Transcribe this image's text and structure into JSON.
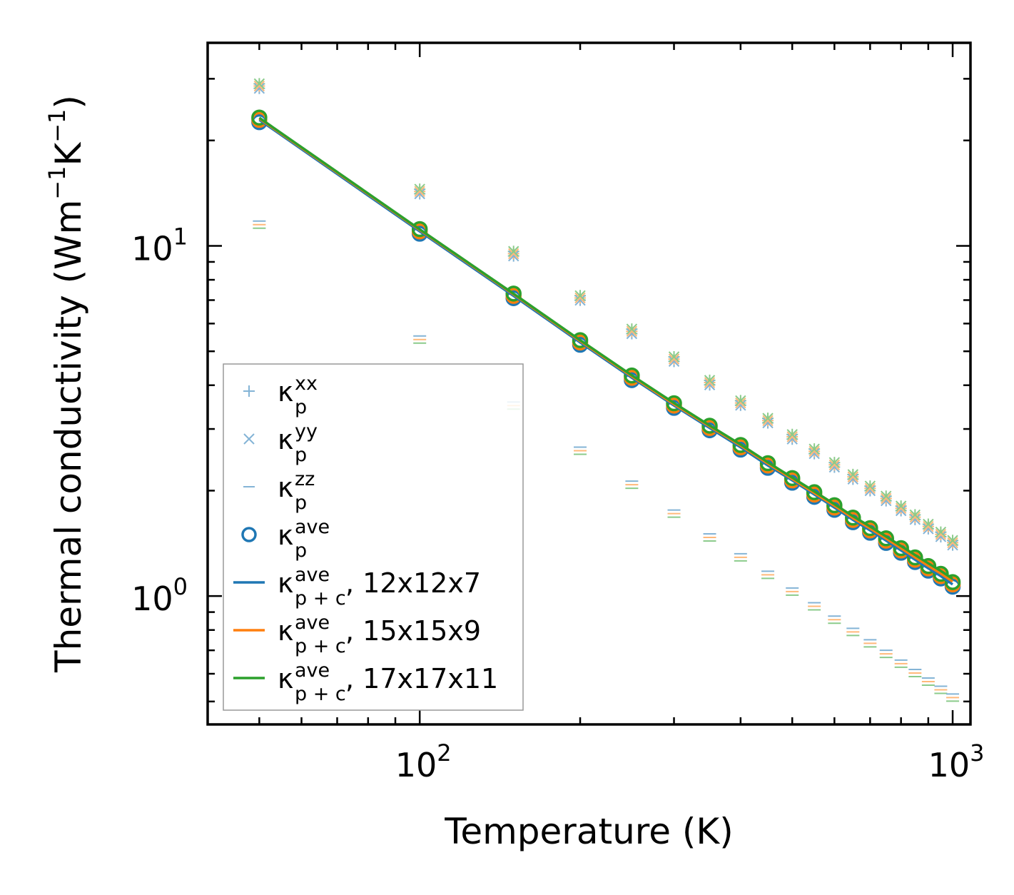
{
  "chart_data": {
    "type": "scatter",
    "x_scale": "log",
    "y_scale": "log",
    "xlabel": "Temperature (K)",
    "ylabel_base": "Thermal conductivity (Wm",
    "ylabel_mid": "K",
    "ylabel_close": ")",
    "ylabel_exp": "−1",
    "xlim": [
      40,
      1080
    ],
    "ylim": [
      0.43,
      38
    ],
    "x_ticks": [
      {
        "base": "10",
        "exp": "2",
        "value": 100
      },
      {
        "base": "10",
        "exp": "3",
        "value": 1000
      }
    ],
    "y_ticks": [
      {
        "base": "10",
        "exp": "0",
        "value": 1
      },
      {
        "base": "10",
        "exp": "1",
        "value": 10
      }
    ],
    "kappa": "κ",
    "temperatures": [
      50,
      100,
      150,
      200,
      250,
      300,
      350,
      400,
      450,
      500,
      550,
      600,
      650,
      700,
      750,
      800,
      850,
      900,
      950,
      1000
    ],
    "series": [
      {
        "name": "κp^xx",
        "marker": "plus",
        "color": "#1f77b4",
        "values": [
          28.6,
          14.3,
          9.5,
          7.1,
          5.7,
          4.75,
          4.07,
          3.56,
          3.17,
          2.85,
          2.59,
          2.37,
          2.19,
          2.03,
          1.9,
          1.78,
          1.68,
          1.58,
          1.5,
          1.42
        ]
      },
      {
        "name": "κp^yy",
        "marker": "x",
        "color": "#1f77b4",
        "values": [
          28.6,
          14.3,
          9.5,
          7.1,
          5.7,
          4.75,
          4.07,
          3.56,
          3.17,
          2.85,
          2.59,
          2.37,
          2.19,
          2.03,
          1.9,
          1.78,
          1.68,
          1.58,
          1.5,
          1.42
        ]
      },
      {
        "name": "κp^zz",
        "marker": "hline",
        "color": "#1f77b4",
        "values": [
          11.5,
          5.4,
          3.5,
          2.6,
          2.08,
          1.72,
          1.47,
          1.29,
          1.15,
          1.03,
          0.935,
          0.856,
          0.79,
          0.733,
          0.684,
          0.641,
          0.603,
          0.57,
          0.54,
          0.513
        ]
      },
      {
        "name": "κp^ave",
        "marker": "circle",
        "color": "#1f77b4",
        "values": [
          22.9,
          11.0,
          7.2,
          5.3,
          4.2,
          3.5,
          3.02,
          2.66,
          2.36,
          2.14,
          1.95,
          1.79,
          1.65,
          1.54,
          1.44,
          1.35,
          1.27,
          1.2,
          1.14,
          1.08
        ]
      },
      {
        "name": "κp+c^ave, 12x12x7",
        "marker": "line",
        "color": "#1f77b4",
        "values": [
          22.9,
          11.0,
          7.2,
          5.3,
          4.2,
          3.5,
          3.02,
          2.66,
          2.36,
          2.14,
          1.95,
          1.79,
          1.65,
          1.54,
          1.44,
          1.35,
          1.27,
          1.2,
          1.14,
          1.08
        ]
      },
      {
        "name": "κp+c^ave, 15x15x9",
        "marker": "line",
        "color": "#ff7f0e",
        "values": [
          23.1,
          11.1,
          7.27,
          5.35,
          4.24,
          3.53,
          3.05,
          2.69,
          2.39,
          2.16,
          1.97,
          1.81,
          1.67,
          1.56,
          1.46,
          1.37,
          1.29,
          1.22,
          1.16,
          1.1
        ]
      },
      {
        "name": "κp+c^ave, 17x17x11",
        "marker": "line",
        "color": "#2ca02c",
        "values": [
          23.2,
          11.15,
          7.3,
          5.38,
          4.27,
          3.56,
          3.07,
          2.71,
          2.41,
          2.18,
          1.99,
          1.83,
          1.69,
          1.58,
          1.48,
          1.39,
          1.31,
          1.24,
          1.18,
          1.12
        ]
      }
    ],
    "legend": {
      "position": "lower-left",
      "entries": [
        {
          "main": "κ",
          "sub": "p",
          "sup": "xx",
          "tail": "",
          "marker": "plus",
          "color": "#1f77b4"
        },
        {
          "main": "κ",
          "sub": "p",
          "sup": "yy",
          "tail": "",
          "marker": "x",
          "color": "#1f77b4"
        },
        {
          "main": "κ",
          "sub": "p",
          "sup": "zz",
          "tail": "",
          "marker": "hline",
          "color": "#1f77b4"
        },
        {
          "main": "κ",
          "sub": "p",
          "sup": "ave",
          "tail": "",
          "marker": "circle",
          "color": "#1f77b4"
        },
        {
          "main": "κ",
          "sub": "p + c",
          "sup": "ave",
          "tail": ", 12x12x7",
          "marker": "line",
          "color": "#1f77b4"
        },
        {
          "main": "κ",
          "sub": "p + c",
          "sup": "ave",
          "tail": ", 15x15x9",
          "marker": "line",
          "color": "#ff7f0e"
        },
        {
          "main": "κ",
          "sub": "p + c",
          "sup": "ave",
          "tail": ", 17x17x11",
          "marker": "line",
          "color": "#2ca02c"
        }
      ]
    }
  }
}
